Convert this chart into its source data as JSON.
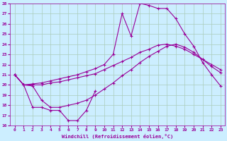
{
  "xlabel": "Windchill (Refroidissement éolien,°C)",
  "background_color": "#cceeff",
  "grid_color": "#aaccbb",
  "line_color": "#990099",
  "xlim": [
    -0.5,
    23.5
  ],
  "ylim": [
    16,
    28
  ],
  "yticks": [
    16,
    17,
    18,
    19,
    20,
    21,
    22,
    23,
    24,
    25,
    26,
    27,
    28
  ],
  "xticks": [
    0,
    1,
    2,
    3,
    4,
    5,
    6,
    7,
    8,
    9,
    10,
    11,
    12,
    13,
    14,
    15,
    16,
    17,
    18,
    19,
    20,
    21,
    22,
    23
  ],
  "line_top_x": [
    0,
    1,
    2,
    3,
    4,
    5,
    6,
    7,
    8,
    9,
    10,
    11,
    12,
    13,
    14,
    15,
    16,
    17,
    18,
    19,
    20,
    21,
    22,
    23
  ],
  "line_top_y": [
    21.0,
    20.0,
    20.1,
    20.2,
    20.4,
    20.6,
    20.8,
    21.0,
    21.3,
    21.6,
    22.0,
    23.0,
    27.0,
    24.8,
    28.0,
    27.8,
    27.5,
    27.5,
    26.5,
    25.0,
    23.8,
    22.2,
    21.0,
    19.9
  ],
  "line_mid_upper_x": [
    0,
    1,
    2,
    3,
    4,
    5,
    6,
    7,
    8,
    9,
    10,
    11,
    12,
    13,
    14,
    15,
    16,
    17,
    18,
    19,
    20,
    21,
    22,
    23
  ],
  "line_mid_upper_y": [
    21.0,
    20.0,
    20.0,
    20.0,
    20.2,
    20.3,
    20.5,
    20.7,
    20.9,
    21.1,
    21.5,
    21.9,
    22.3,
    22.7,
    23.2,
    23.5,
    23.9,
    24.0,
    23.8,
    23.5,
    23.0,
    22.5,
    22.0,
    21.5
  ],
  "line_mid_lower_x": [
    0,
    1,
    2,
    3,
    4,
    5,
    6,
    7,
    8,
    9,
    10,
    11,
    12,
    13,
    14,
    15,
    16,
    17,
    18,
    19,
    20,
    21,
    22,
    23
  ],
  "line_mid_lower_y": [
    21.0,
    20.0,
    19.9,
    18.5,
    17.8,
    17.8,
    18.0,
    18.2,
    18.5,
    19.0,
    19.6,
    20.2,
    20.9,
    21.5,
    22.2,
    22.8,
    23.3,
    23.8,
    24.0,
    23.7,
    23.2,
    22.5,
    21.8,
    21.2
  ],
  "line_bot_x": [
    0,
    1,
    2,
    3,
    4,
    5,
    6,
    7,
    8,
    9
  ],
  "line_bot_y": [
    21.0,
    20.0,
    17.8,
    17.8,
    17.5,
    17.5,
    16.5,
    16.5,
    17.5,
    19.4
  ]
}
